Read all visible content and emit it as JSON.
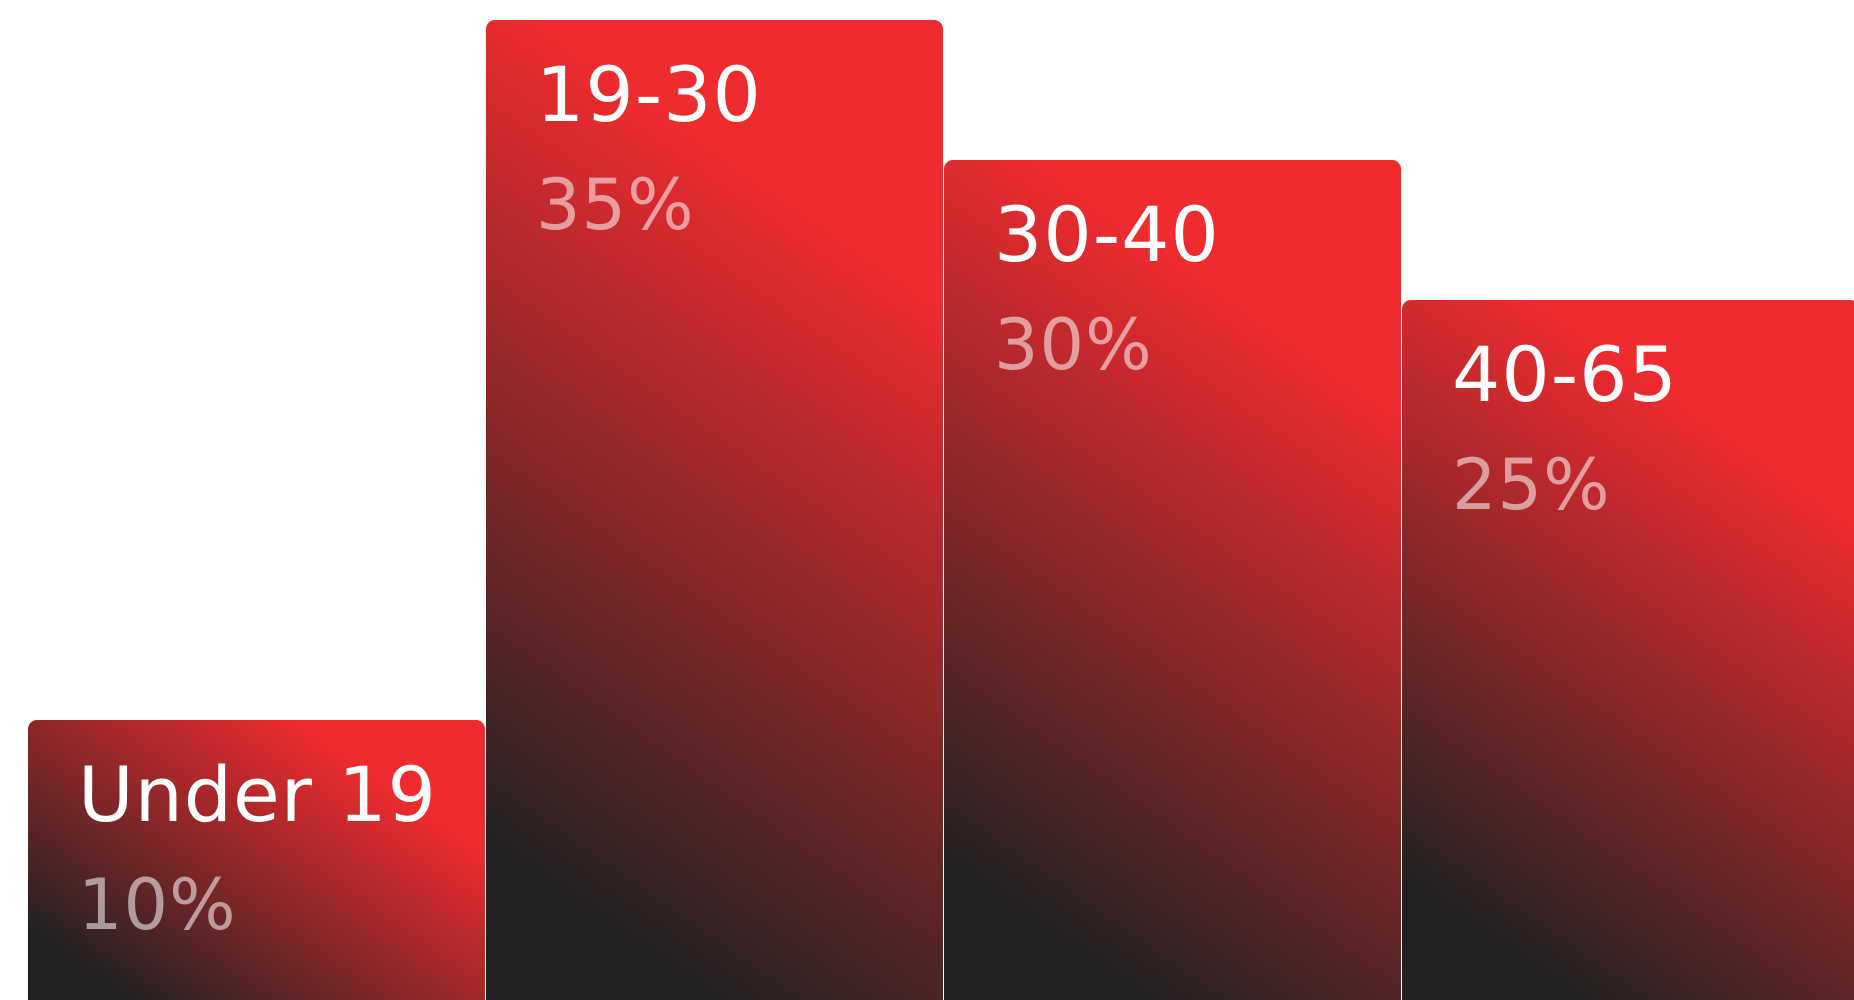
{
  "chart_data": {
    "type": "bar",
    "categories": [
      "Under 19",
      "19-30",
      "30-40",
      "40-65"
    ],
    "values": [
      10,
      35,
      30,
      25
    ],
    "value_labels": [
      "10%",
      "35%",
      "30%",
      "25%"
    ],
    "title": "",
    "xlabel": "",
    "ylabel": "",
    "ylim": [
      0,
      35
    ],
    "grid": false,
    "legend": "none"
  },
  "colors": {
    "bar_gradient_light": "#ee2b2f",
    "bar_gradient_dark": "#222222",
    "label_text": "#ffffff",
    "value_text": "rgba(255,255,255,0.55)",
    "background": "#ffffff"
  }
}
